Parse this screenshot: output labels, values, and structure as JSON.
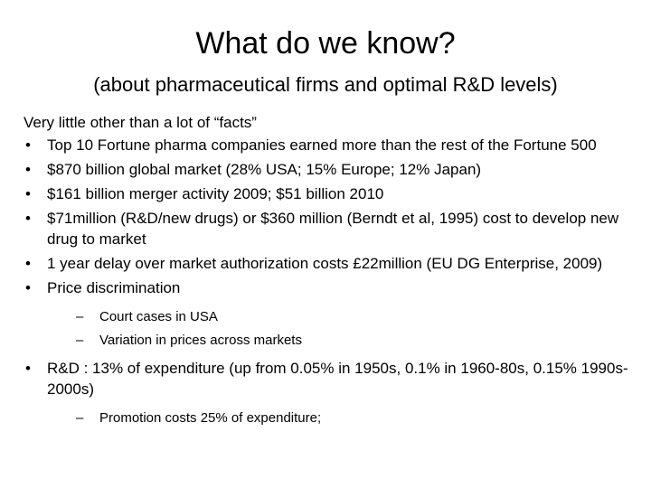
{
  "title": "What do we know?",
  "subtitle": "(about pharmaceutical firms and optimal R&D levels)",
  "intro": "Very little other than a lot of “facts”",
  "bullet_glyph": "•",
  "dash_glyph": "–",
  "bullets": [
    "Top 10 Fortune pharma companies earned more than the rest of the Fortune 500",
    "$870 billion global market (28% USA; 15% Europe; 12% Japan)",
    "$161 billion merger activity 2009; $51 billion 2010",
    "$71million (R&D/new drugs) or $360 million (Berndt et al, 1995) cost to develop new drug to market",
    "1 year delay over market authorization costs £22million (EU DG Enterprise, 2009)",
    "Price discrimination",
    "R&D : 13% of expenditure (up from 0.05% in 1950s, 0.1% in 1960-80s, 0.15% 1990s-2000s)"
  ],
  "sub_bullets_price": [
    "Court cases in USA",
    "Variation in prices across markets"
  ],
  "sub_bullets_rd": [
    "Promotion costs 25% of expenditure;"
  ]
}
